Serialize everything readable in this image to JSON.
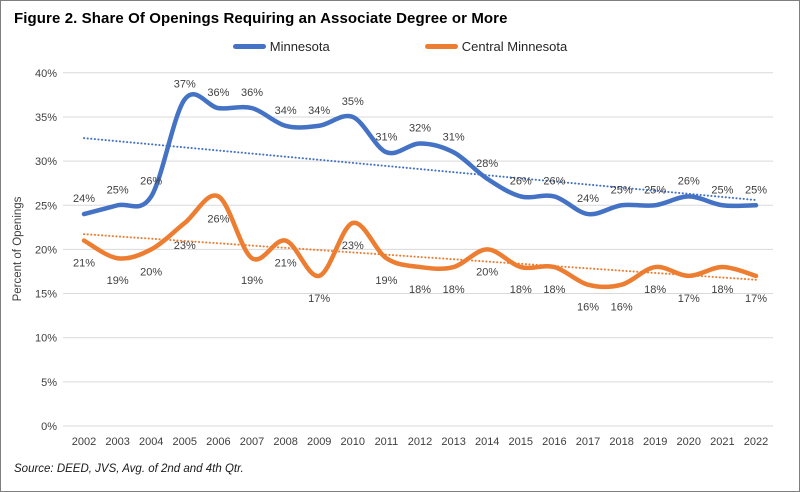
{
  "figure": {
    "title": "Figure 2. Share Of Openings Requiring an Associate Degree or More"
  },
  "source": {
    "text": "Source: DEED, JVS, Avg. of 2nd and 4th Qtr."
  },
  "chart_data": {
    "type": "line",
    "title": "Figure 2. Share Of Openings Requiring an Associate Degree or More",
    "xlabel": "",
    "ylabel": "Percent of Openings",
    "ylim": [
      0,
      40
    ],
    "ytick_step": 5,
    "ytick_labels": [
      "0%",
      "5%",
      "10%",
      "15%",
      "20%",
      "25%",
      "30%",
      "35%",
      "40%"
    ],
    "grid": true,
    "smoothed": true,
    "legend_position": "top",
    "grid_color": "#d9d9d9",
    "tick_color": "#404040",
    "label_color": "#404040",
    "categories": [
      "2002",
      "2003",
      "2004",
      "2005",
      "2006",
      "2007",
      "2008",
      "2009",
      "2010",
      "2011",
      "2012",
      "2013",
      "2014",
      "2015",
      "2016",
      "2017",
      "2018",
      "2019",
      "2020",
      "2021",
      "2022"
    ],
    "series": [
      {
        "name": "Minnesota",
        "color": "#4472C4",
        "values": [
          24,
          25,
          26,
          37,
          36,
          36,
          34,
          34,
          35,
          31,
          32,
          31,
          28,
          26,
          26,
          24,
          25,
          25,
          26,
          25,
          25
        ],
        "labels": [
          "24%",
          "25%",
          "26%",
          "37%",
          "36%",
          "36%",
          "34%",
          "34%",
          "35%",
          "31%",
          "32%",
          "31%",
          "28%",
          "26%",
          "26%",
          "24%",
          "25%",
          "25%",
          "26%",
          "25%",
          "25%"
        ],
        "label_position": "above",
        "trendline": true
      },
      {
        "name": "Central Minnesota",
        "color": "#ED7D31",
        "values": [
          21,
          19,
          20,
          23,
          26,
          19,
          21,
          17,
          23,
          19,
          18,
          18,
          20,
          18,
          18,
          16,
          16,
          18,
          17,
          18,
          17
        ],
        "labels": [
          "21%",
          "19%",
          "20%",
          "23%",
          "26%",
          "19%",
          "21%",
          "17%",
          "23%",
          "19%",
          "18%",
          "18%",
          "20%",
          "18%",
          "18%",
          "16%",
          "16%",
          "18%",
          "17%",
          "18%",
          "17%"
        ],
        "label_position": "below",
        "trendline": true
      }
    ]
  }
}
